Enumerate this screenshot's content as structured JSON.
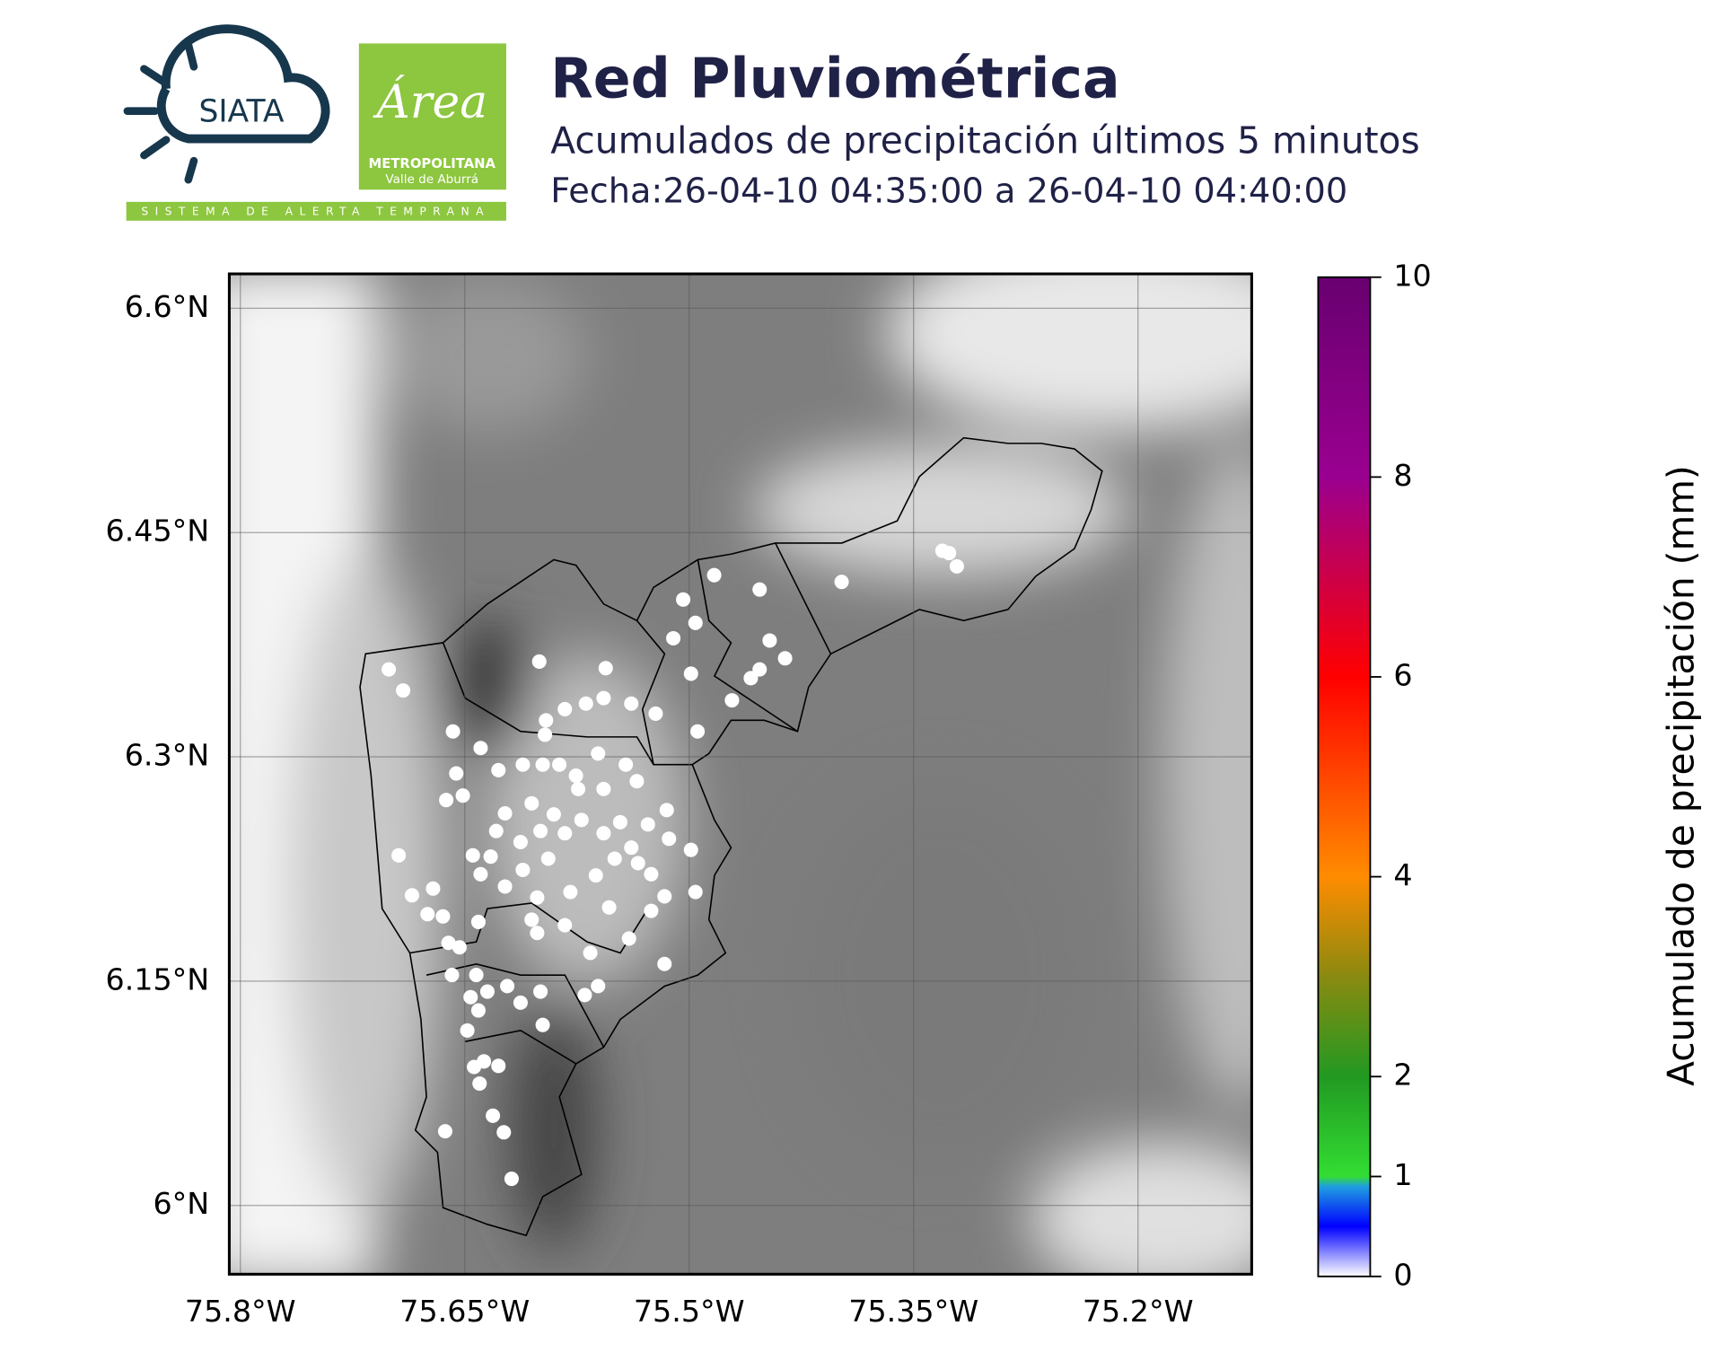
{
  "header": {
    "logo_siata": "SIATA",
    "logo_area": "Área",
    "logo_metro": "METROPOLITANA",
    "logo_valle": "Valle de Aburrá",
    "logo_tagline": "SISTEMA DE ALERTA TEMPRANA"
  },
  "chart_data": {
    "type": "scatter",
    "title": "Red Pluviométrica",
    "subtitle": "Acumulados de precipitación últimos 5 minutos",
    "date_range": "Fecha:26-04-10 04:35:00 a 26-04-10 04:40:00",
    "colorbar_label": "Acumulado de precipitación (mm)",
    "clim": [
      0,
      10
    ],
    "colorbar_ticks": [
      0,
      1,
      2,
      4,
      6,
      8,
      10
    ],
    "xlim": [
      -75.8074,
      -75.124
    ],
    "ylim": [
      5.954,
      6.623
    ],
    "xticks": [
      {
        "value": -75.8,
        "label": "75.8°W"
      },
      {
        "value": -75.65,
        "label": "75.65°W"
      },
      {
        "value": -75.5,
        "label": "75.5°W"
      },
      {
        "value": -75.35,
        "label": "75.35°W"
      },
      {
        "value": -75.2,
        "label": "75.2°W"
      }
    ],
    "yticks": [
      {
        "value": 6.0,
        "label": "6°N"
      },
      {
        "value": 6.15,
        "label": "6.15°N"
      },
      {
        "value": 6.3,
        "label": "6.3°N"
      },
      {
        "value": 6.45,
        "label": "6.45°N"
      },
      {
        "value": 6.6,
        "label": "6.6°N"
      }
    ],
    "grid": true,
    "color": "#ffffff",
    "x": [
      -75.7008,
      -75.6912,
      -75.6579,
      -75.6394,
      -75.6002,
      -75.5558,
      -75.504,
      -75.4833,
      -75.4529,
      -75.3981,
      -75.3307,
      -75.3263,
      -75.3211,
      -75.5106,
      -75.4958,
      -75.4988,
      -75.4462,
      -75.4359,
      -75.4529,
      -75.4588,
      -75.4714,
      -75.4944,
      -75.5224,
      -75.5387,
      -75.5572,
      -75.569,
      -75.5831,
      -75.5957,
      -75.5964,
      -75.6112,
      -75.6275,
      -75.6557,
      -75.6513,
      -75.6624,
      -75.6942,
      -75.6853,
      -75.6712,
      -75.6749,
      -75.6646,
      -75.6609,
      -75.6535,
      -75.6409,
      -75.6446,
      -75.6327,
      -75.6394,
      -75.629,
      -75.6231,
      -75.6053,
      -75.5979,
      -75.5868,
      -75.5757,
      -75.5609,
      -75.5424,
      -75.535,
      -75.5572,
      -75.5742,
      -75.5905,
      -75.5994,
      -75.6127,
      -75.6112,
      -75.5942,
      -75.5831,
      -75.572,
      -75.5572,
      -75.5461,
      -75.5387,
      -75.5498,
      -75.5624,
      -75.5794,
      -75.6016,
      -75.6231,
      -75.6053,
      -75.6016,
      -75.5831,
      -75.5661,
      -75.5535,
      -75.5402,
      -75.5254,
      -75.5165,
      -75.4958,
      -75.4988,
      -75.5135,
      -75.515,
      -75.5276,
      -75.5254,
      -75.5342,
      -75.5165,
      -75.5609,
      -75.5698,
      -75.5994,
      -75.6127,
      -75.6216,
      -75.6349,
      -75.6423,
      -75.6586,
      -75.6461,
      -75.6409,
      -75.6483,
      -75.5979,
      -75.6275,
      -75.6372,
      -75.6438,
      -75.6401,
      -75.6312,
      -75.6239,
      -75.6631,
      -75.6187
    ],
    "y": [
      6.3585,
      6.3444,
      6.317,
      6.3059,
      6.3637,
      6.3593,
      6.4052,
      6.4215,
      6.4119,
      6.417,
      6.4378,
      6.4363,
      6.4274,
      6.3793,
      6.3896,
      6.3556,
      6.3778,
      6.3659,
      6.3585,
      6.3526,
      6.3378,
      6.317,
      6.3289,
      6.3356,
      6.3393,
      6.3356,
      6.3319,
      6.3244,
      6.3148,
      6.2948,
      6.2911,
      6.2889,
      6.2741,
      6.2711,
      6.2341,
      6.2074,
      6.2119,
      6.1948,
      6.1933,
      6.1756,
      6.1726,
      6.1896,
      6.2341,
      6.2333,
      6.2215,
      6.2504,
      6.2622,
      6.2689,
      6.2948,
      6.2948,
      6.2874,
      6.3022,
      6.2948,
      6.2837,
      6.2785,
      6.2785,
      6.2615,
      6.2504,
      6.243,
      6.2244,
      6.2319,
      6.2489,
      6.2578,
      6.2489,
      6.2563,
      6.2393,
      6.2319,
      6.2207,
      6.2096,
      6.2059,
      6.2133,
      6.1911,
      6.1822,
      6.1874,
      6.1689,
      6.1993,
      6.1785,
      6.197,
      6.2067,
      6.2096,
      6.2378,
      6.2452,
      6.2644,
      6.2548,
      6.2215,
      6.2289,
      6.1615,
      6.1467,
      6.1407,
      6.143,
      6.1356,
      6.1467,
      6.143,
      6.1541,
      6.1541,
      6.1393,
      6.1304,
      6.117,
      6.1207,
      6.0933,
      6.0963,
      6.0926,
      6.0815,
      6.06,
      6.0489,
      6.0496,
      6.0178
    ]
  }
}
